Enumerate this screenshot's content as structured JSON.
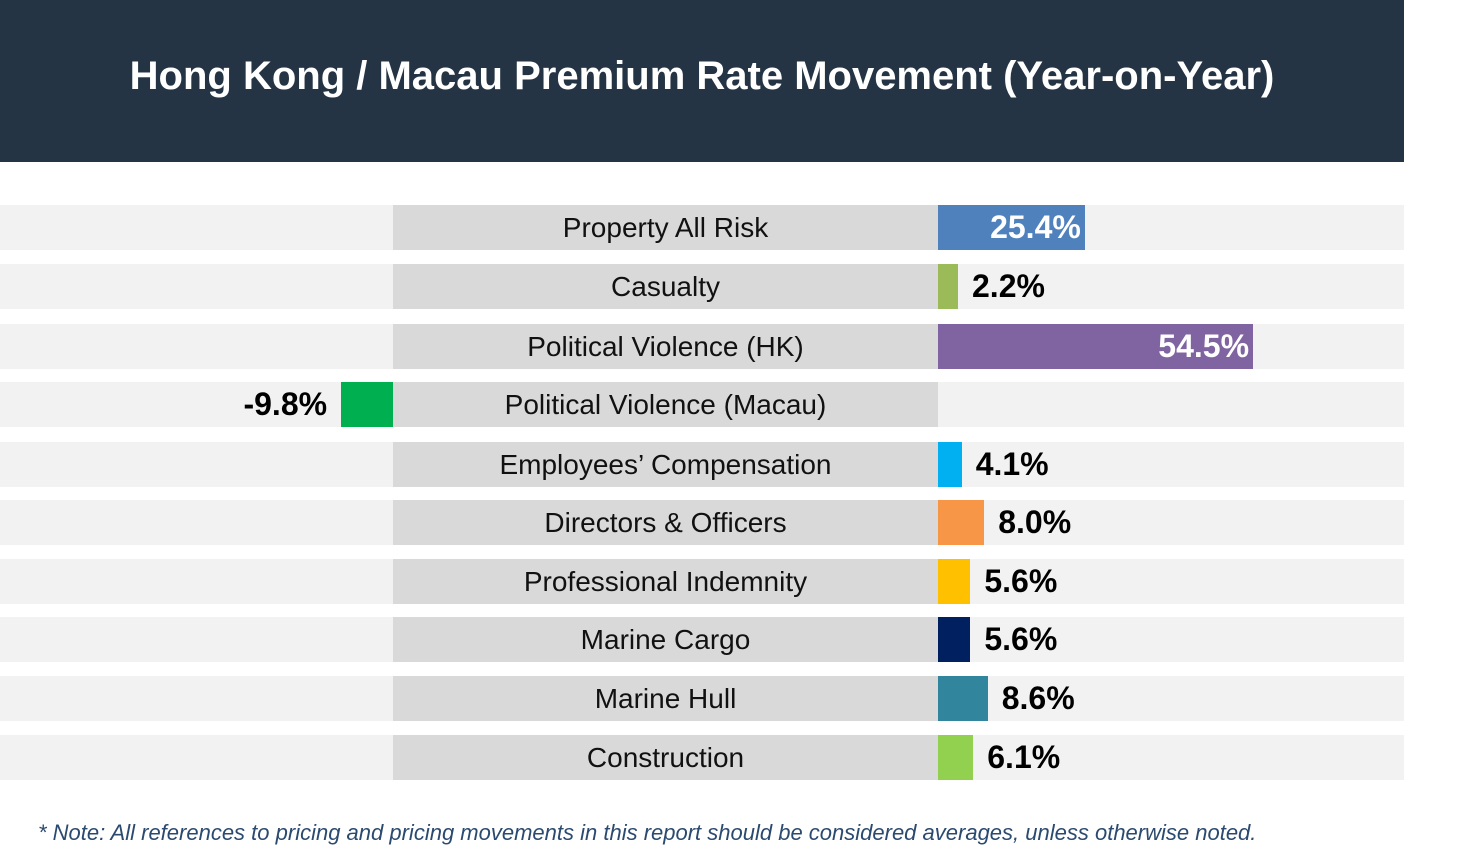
{
  "header": {
    "title": "Hong Kong / Macau Premium Rate Movement (Year-on-Year)"
  },
  "chart_data": {
    "type": "bar",
    "orientation": "horizontal",
    "title": "Hong Kong / Macau Premium Rate Movement (Year-on-Year)",
    "categories": [
      "Property All Risk",
      "Casualty",
      "Political Violence (HK)",
      "Political Violence (Macau)",
      "Employees’ Compensation",
      "Directors & Officers",
      "Professional Indemnity",
      "Marine Cargo",
      "Marine Hull",
      "Construction"
    ],
    "values": [
      25.4,
      2.2,
      54.5,
      -9.8,
      4.1,
      8.0,
      5.6,
      5.6,
      8.6,
      6.1
    ],
    "value_labels": [
      "25.4%",
      "2.2%",
      "54.5%",
      "-9.8%",
      "4.1%",
      "8.0%",
      "5.6%",
      "5.6%",
      "8.6%",
      "6.1%"
    ],
    "colors": [
      "#4f81bd",
      "#9bbb59",
      "#8064a2",
      "#00b050",
      "#00b0f0",
      "#f79646",
      "#ffc000",
      "#002060",
      "#31859c",
      "#92d050"
    ],
    "labels_inside_bar": [
      true,
      false,
      true,
      false,
      false,
      false,
      false,
      false,
      false,
      false
    ]
  },
  "footer": {
    "note": "* Note: All references to pricing and pricing movements in this report should be considered averages, unless otherwise noted."
  }
}
